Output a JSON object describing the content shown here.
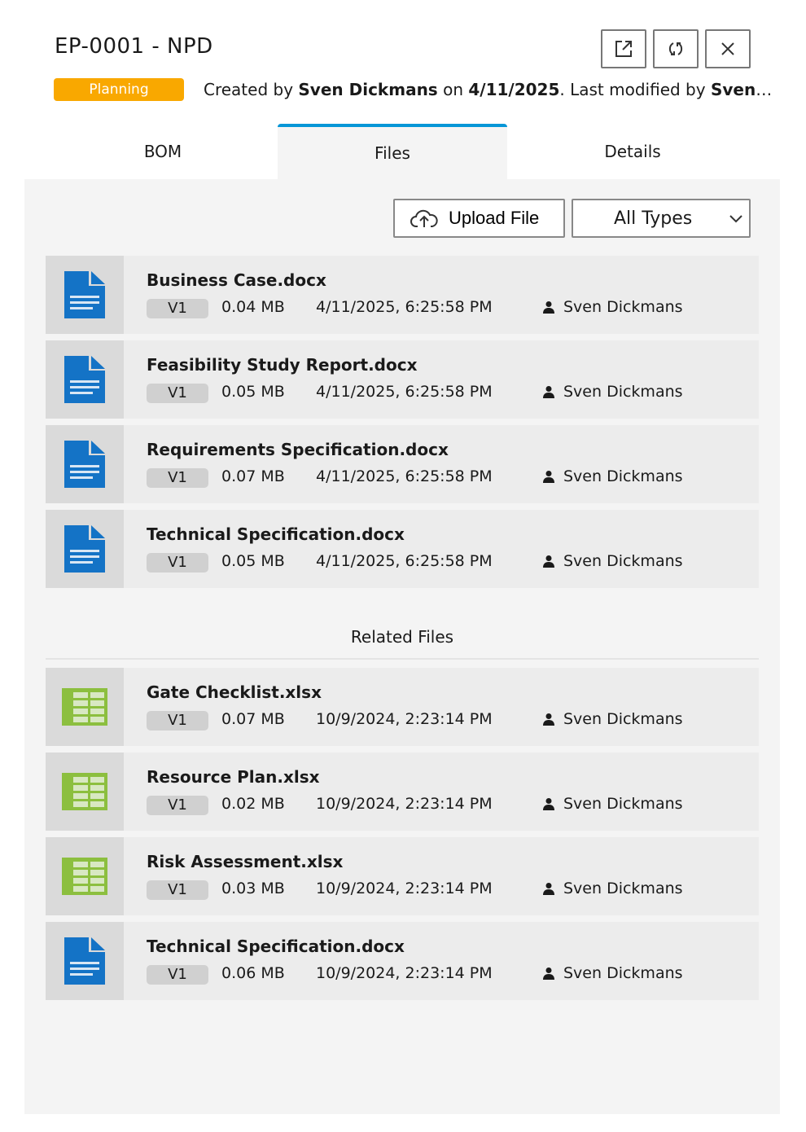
{
  "header": {
    "title": "EP-0001 - NPD",
    "status": "Planning",
    "status_color": "#f9a800",
    "meta": {
      "created_prefix": "Created by ",
      "created_by": "Sven Dickmans",
      "on": " on ",
      "created_date": "4/11/2025",
      "modified_prefix": ". Last modified by ",
      "modified_by": "Sven Dickmans"
    },
    "buttons": {
      "open": "external-link-icon",
      "refresh": "sync-icon",
      "close": "close-icon"
    }
  },
  "tabs": [
    {
      "label": "BOM"
    },
    {
      "label": "Files",
      "active": true
    },
    {
      "label": "Details"
    }
  ],
  "toolbar": {
    "upload_label": "Upload File",
    "filter_value": "All Types"
  },
  "files": [
    {
      "name": "Business Case.docx",
      "type": "docx",
      "version": "V1",
      "size": "0.04 MB",
      "date": "4/11/2025, 6:25:58 PM",
      "user": "Sven Dickmans"
    },
    {
      "name": "Feasibility Study Report.docx",
      "type": "docx",
      "version": "V1",
      "size": "0.05 MB",
      "date": "4/11/2025, 6:25:58 PM",
      "user": "Sven Dickmans"
    },
    {
      "name": "Requirements Specification.docx",
      "type": "docx",
      "version": "V1",
      "size": "0.07 MB",
      "date": "4/11/2025, 6:25:58 PM",
      "user": "Sven Dickmans"
    },
    {
      "name": "Technical Specification.docx",
      "type": "docx",
      "version": "V1",
      "size": "0.05 MB",
      "date": "4/11/2025, 6:25:58 PM",
      "user": "Sven Dickmans"
    }
  ],
  "related_title": "Related Files",
  "related": [
    {
      "name": "Gate Checklist.xlsx",
      "type": "xlsx",
      "version": "V1",
      "size": "0.07 MB",
      "date": "10/9/2024, 2:23:14 PM",
      "user": "Sven Dickmans"
    },
    {
      "name": "Resource Plan.xlsx",
      "type": "xlsx",
      "version": "V1",
      "size": "0.02 MB",
      "date": "10/9/2024, 2:23:14 PM",
      "user": "Sven Dickmans"
    },
    {
      "name": "Risk Assessment.xlsx",
      "type": "xlsx",
      "version": "V1",
      "size": "0.03 MB",
      "date": "10/9/2024, 2:23:14 PM",
      "user": "Sven Dickmans"
    },
    {
      "name": "Technical Specification.docx",
      "type": "docx",
      "version": "V1",
      "size": "0.06 MB",
      "date": "10/9/2024, 2:23:14 PM",
      "user": "Sven Dickmans"
    }
  ]
}
